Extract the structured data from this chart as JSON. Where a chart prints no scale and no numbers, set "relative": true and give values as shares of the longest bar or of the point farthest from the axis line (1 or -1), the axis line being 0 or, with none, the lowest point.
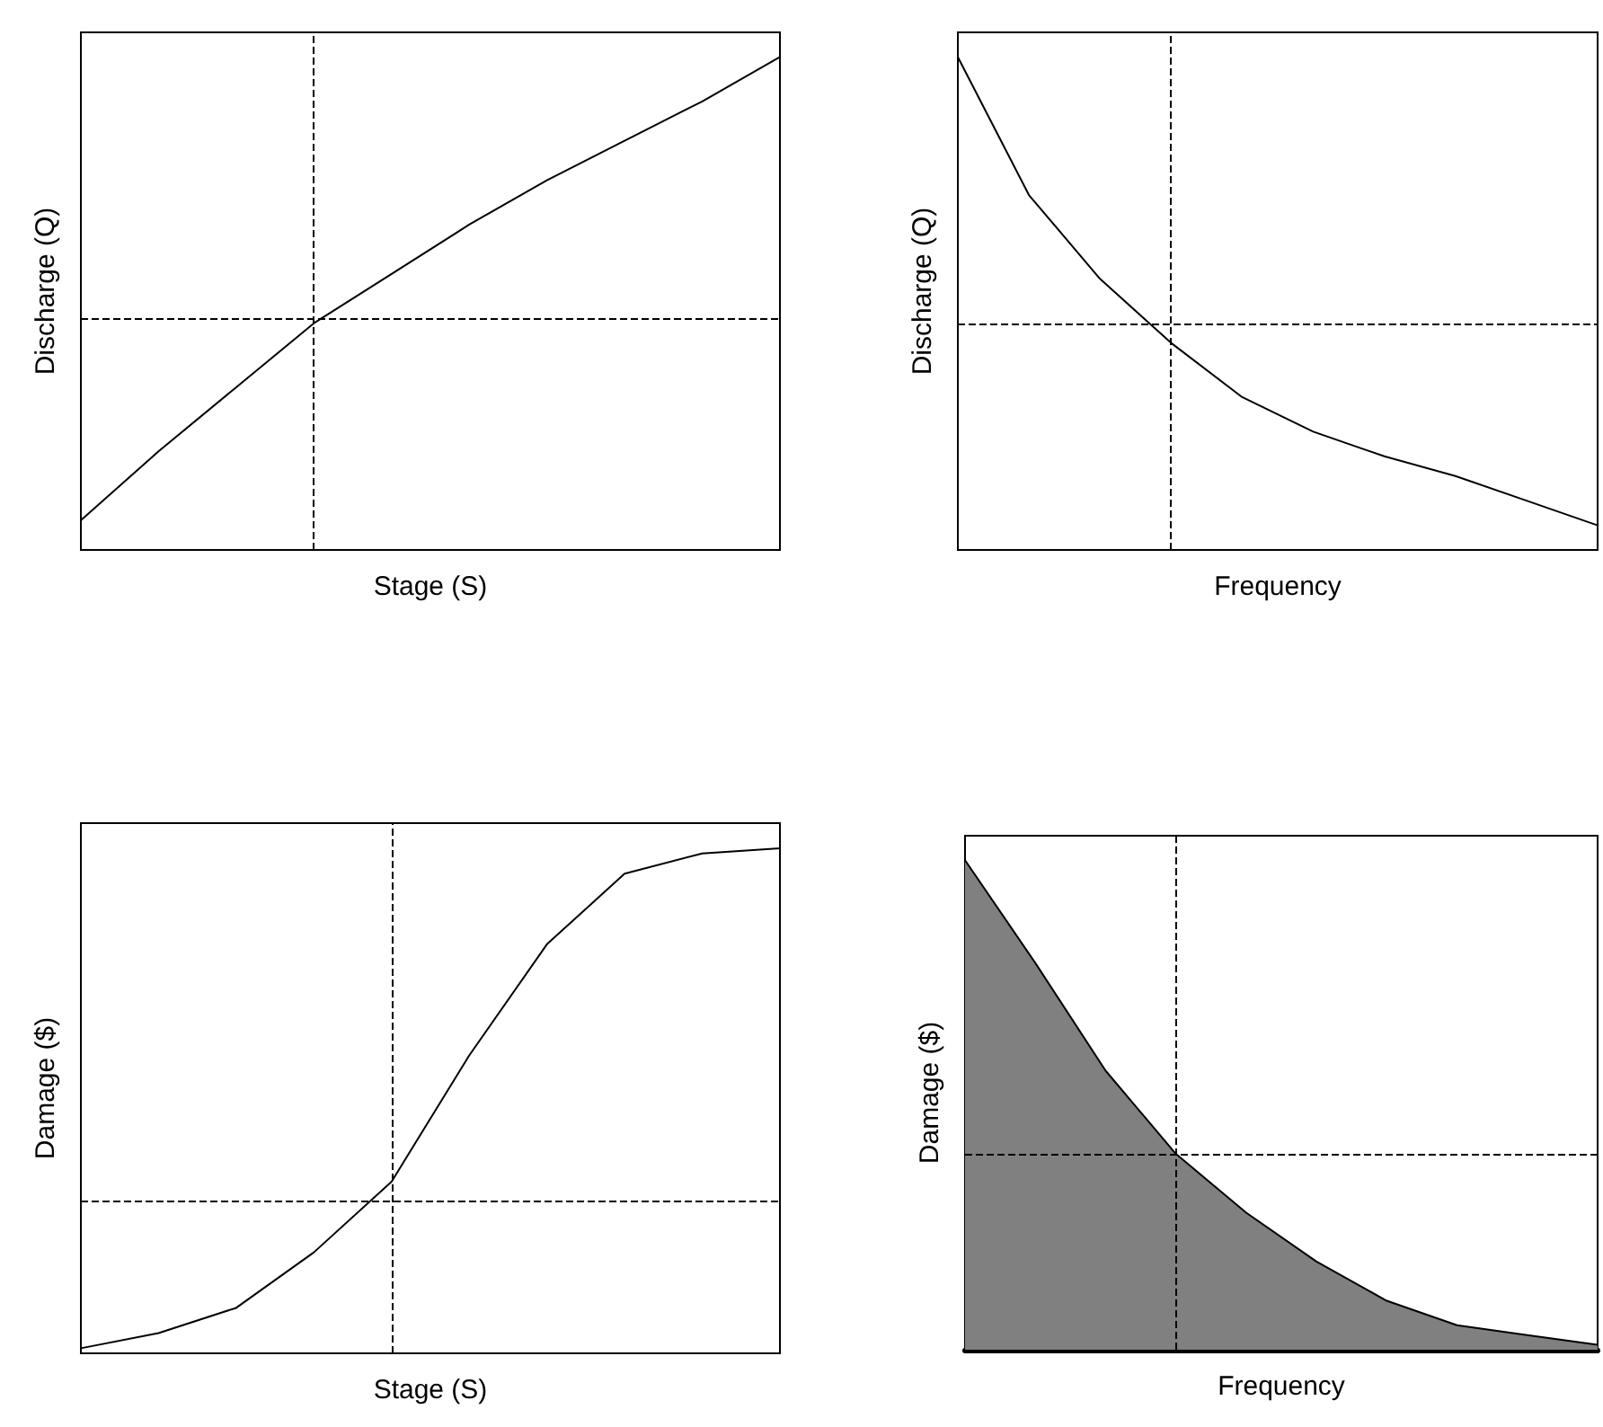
{
  "chart_data": [
    {
      "type": "line",
      "relative": true,
      "xlabel": "Stage (S)",
      "ylabel": "Discharge (Q)",
      "categories": [
        null,
        null,
        null,
        null,
        null,
        null,
        null,
        null,
        null,
        null
      ],
      "series": [
        {
          "color": "#000000",
          "values": [
            0.06,
            0.2,
            0.33,
            0.46,
            0.56,
            0.66,
            0.75,
            0.83,
            0.91,
            1
          ]
        }
      ],
      "ref_lines": [
        {
          "axis": "y",
          "value": 0.47,
          "line_style": "dashed",
          "color": "#000000"
        }
      ]
    },
    {
      "type": "line",
      "relative": true,
      "xlabel": "Frequency",
      "ylabel": "Discharge (Q)",
      "categories": [
        null,
        null,
        null,
        null,
        null,
        null,
        null,
        null,
        null,
        null
      ],
      "series": [
        {
          "color": "#000000",
          "values": [
            1,
            0.72,
            0.55,
            0.42,
            0.31,
            0.24,
            0.19,
            0.15,
            0.1,
            0.05
          ]
        }
      ],
      "ref_lines": [
        {
          "axis": "y",
          "value": 0.46,
          "line_style": "dashed",
          "color": "#000000"
        }
      ]
    },
    {
      "type": "line",
      "relative": true,
      "xlabel": "Stage (S)",
      "ylabel": "Damage ($)",
      "categories": [
        null,
        null,
        null,
        null,
        null,
        null,
        null,
        null,
        null,
        null
      ],
      "series": [
        {
          "color": "#000000",
          "values": [
            0.01,
            0.04,
            0.09,
            0.2,
            0.34,
            0.59,
            0.81,
            0.95,
            0.99,
            1
          ]
        }
      ],
      "ref_lines": [
        {
          "axis": "y",
          "value": 0.3,
          "line_style": "dashed",
          "color": "#000000"
        }
      ]
    },
    {
      "type": "area",
      "relative": true,
      "xlabel": "Frequency",
      "ylabel": "Damage ($)",
      "categories": [
        null,
        null,
        null,
        null,
        null,
        null,
        null,
        null,
        null,
        null
      ],
      "series": [
        {
          "color": "#808080",
          "values": [
            1,
            0.79,
            0.57,
            0.4,
            0.28,
            0.18,
            0.1,
            0.05,
            0.03,
            0.01
          ]
        }
      ],
      "ref_lines": [
        {
          "axis": "y",
          "value": 0.4,
          "line_style": "dashed",
          "color": "#000000"
        }
      ]
    }
  ]
}
